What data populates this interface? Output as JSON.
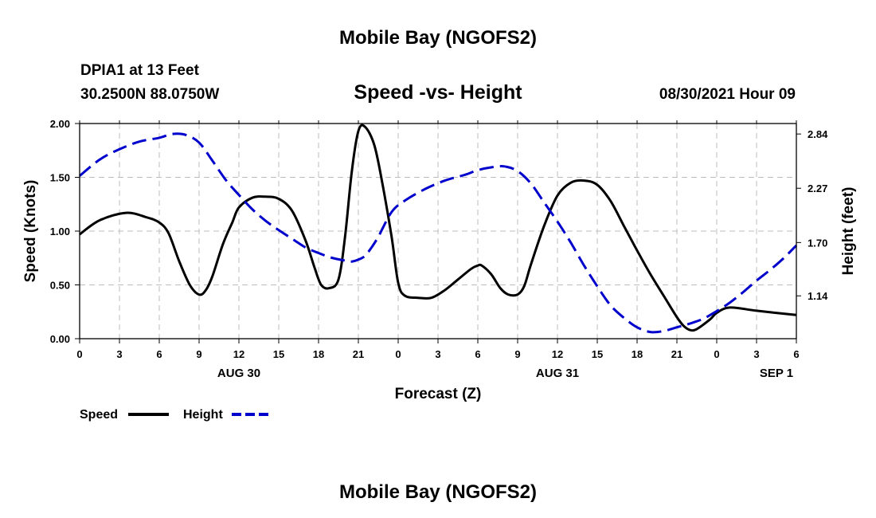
{
  "header": {
    "title_top": "Mobile Bay (NGOFS2)",
    "station": "DPIA1 at 13 Feet",
    "coords": "30.2500N  88.0750W",
    "chart_title": "Speed -vs- Height",
    "datetime": "08/30/2021 Hour 09",
    "title_bottom": "Mobile Bay (NGOFS2)"
  },
  "legend": {
    "speed": "Speed",
    "height": "Height"
  },
  "colors": {
    "speed": "#000000",
    "height": "#0000cc",
    "grid": "#bdbdbd"
  },
  "chart_data": {
    "type": "line",
    "title": "Speed -vs- Height",
    "xlabel": "Forecast (Z)",
    "ylabel": "Speed (Knots)",
    "y2label": "Height (feet)",
    "xlim": [
      0,
      54
    ],
    "ylim": [
      0,
      2.0
    ],
    "y2lim": [
      0.69,
      2.95
    ],
    "x_ticks": [
      0,
      3,
      6,
      9,
      12,
      15,
      18,
      21,
      24,
      27,
      30,
      33,
      36,
      39,
      42,
      45,
      48,
      51,
      54
    ],
    "x_tick_labels": [
      "0",
      "3",
      "6",
      "9",
      "12",
      "15",
      "18",
      "21",
      "0",
      "3",
      "6",
      "9",
      "12",
      "15",
      "18",
      "21",
      "0",
      "3",
      "6"
    ],
    "y_ticks": [
      0,
      0.5,
      1.0,
      1.5,
      2.0
    ],
    "y_tick_labels": [
      "0.00",
      "0.50",
      "1.00",
      "1.50",
      "2.00"
    ],
    "y2_ticks": [
      1.14,
      1.7,
      2.27,
      2.84
    ],
    "y2_tick_labels": [
      "1.14",
      "1.70",
      "2.27",
      "2.84"
    ],
    "date_labels": [
      {
        "x": 12,
        "label": "AUG 30"
      },
      {
        "x": 36,
        "label": "AUG 31"
      },
      {
        "x": 52.5,
        "label": "SEP 1"
      }
    ],
    "grid": true,
    "series": [
      {
        "name": "Speed",
        "axis": "left",
        "style": "solid",
        "x": [
          0,
          1.5,
          3.5,
          5,
          6,
          6.7,
          7.5,
          8.3,
          9,
          9.5,
          10,
          10.8,
          11.5,
          12,
          13,
          14,
          15,
          16,
          17,
          17.7,
          18.2,
          18.8,
          19.5,
          20,
          20.5,
          21,
          21.5,
          22.2,
          22.8,
          23.5,
          24,
          24.5,
          25.5,
          26.5,
          27.5,
          28.5,
          29.5,
          30,
          30.3,
          31,
          31.7,
          32.3,
          33,
          33.5,
          34,
          35,
          36,
          37,
          38,
          39,
          40,
          41,
          42,
          43,
          44,
          45,
          45.5,
          46,
          46.5,
          47.5,
          48,
          49,
          51,
          54
        ],
        "values": [
          0.97,
          1.1,
          1.17,
          1.13,
          1.08,
          0.98,
          0.72,
          0.5,
          0.41,
          0.45,
          0.58,
          0.88,
          1.08,
          1.22,
          1.31,
          1.32,
          1.3,
          1.19,
          0.92,
          0.66,
          0.5,
          0.47,
          0.55,
          0.95,
          1.55,
          1.93,
          1.97,
          1.8,
          1.45,
          0.95,
          0.52,
          0.4,
          0.38,
          0.38,
          0.45,
          0.55,
          0.65,
          0.68,
          0.68,
          0.6,
          0.47,
          0.41,
          0.41,
          0.49,
          0.69,
          1.05,
          1.33,
          1.45,
          1.47,
          1.43,
          1.28,
          1.05,
          0.82,
          0.6,
          0.4,
          0.2,
          0.12,
          0.08,
          0.09,
          0.18,
          0.24,
          0.29,
          0.26,
          0.22
        ]
      },
      {
        "name": "Height",
        "axis": "right",
        "style": "dashed",
        "x": [
          0,
          1.5,
          3,
          4.5,
          6,
          7,
          8,
          9,
          10,
          11,
          12,
          13,
          14,
          15,
          16,
          17,
          18,
          19,
          20,
          20.5,
          21,
          21.5,
          22,
          22.5,
          23.5,
          24.5,
          26,
          27.5,
          29,
          30,
          31,
          32,
          33,
          34,
          35,
          36,
          37,
          38,
          39,
          40,
          41,
          42,
          43,
          44,
          45,
          46,
          47,
          48,
          49,
          50,
          51,
          52,
          53,
          54
        ],
        "values": [
          2.4,
          2.57,
          2.68,
          2.76,
          2.8,
          2.84,
          2.83,
          2.75,
          2.56,
          2.36,
          2.2,
          2.05,
          1.93,
          1.83,
          1.74,
          1.65,
          1.59,
          1.54,
          1.51,
          1.5,
          1.52,
          1.56,
          1.65,
          1.76,
          2.02,
          2.14,
          2.26,
          2.35,
          2.41,
          2.46,
          2.49,
          2.5,
          2.45,
          2.32,
          2.12,
          1.92,
          1.7,
          1.46,
          1.24,
          1.04,
          0.91,
          0.81,
          0.76,
          0.77,
          0.81,
          0.85,
          0.9,
          0.98,
          1.07,
          1.18,
          1.3,
          1.41,
          1.53,
          1.67
        ]
      }
    ]
  }
}
